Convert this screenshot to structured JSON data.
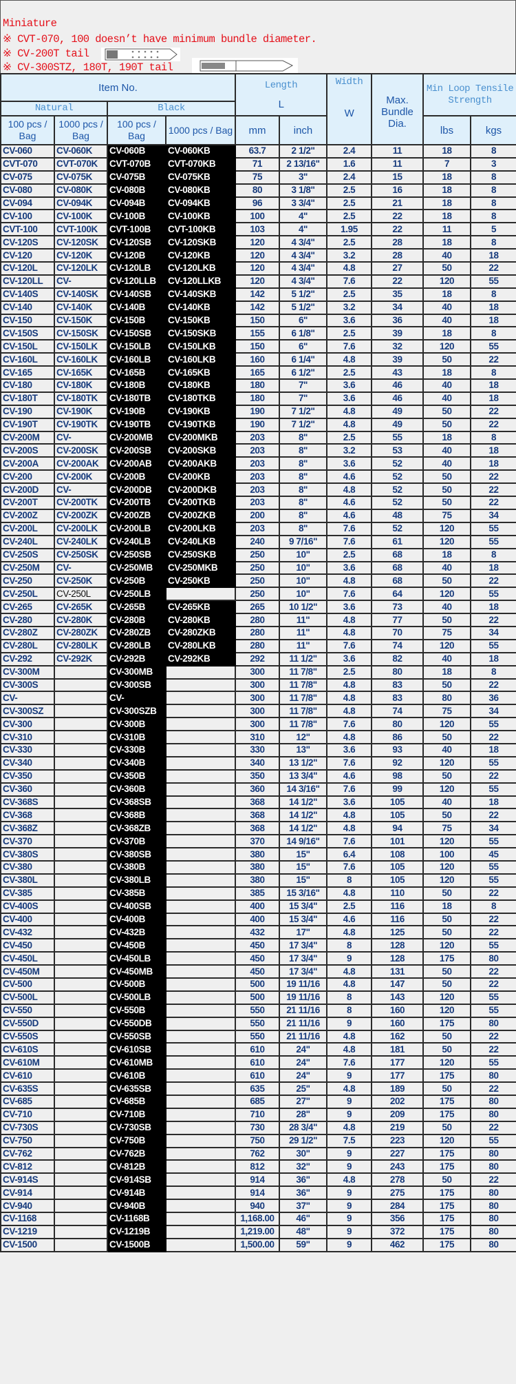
{
  "notes": {
    "title": "Miniature",
    "line1": "※ CVT-070, 100 doesn’t have minimum bundle diameter.",
    "line2": "※ CV-200T tail",
    "line3": "※ CV-300STZ, 180T, 190T tail"
  },
  "header": {
    "item_no": "Item No.",
    "length": "Length",
    "length_symbol": "L",
    "width": "Width",
    "width_symbol": "W",
    "max_bundle": "Max. Bundle Dia.",
    "tensile": "Min Loop Tensile Strength",
    "natural": "Natural",
    "black": "Black",
    "n100": "100 pcs / Bag",
    "n1000": "1000 pcs / Bag",
    "b100": "100 pcs / Bag",
    "b1000": "1000 pcs / Bag",
    "mm": "mm",
    "inch": "inch",
    "lbs": "lbs",
    "kgs": "kgs"
  },
  "colors": {
    "note_red": "#e4101a",
    "text_blue": "#163a7c",
    "header_bg": "#dff0fb",
    "black_col": "#000000"
  },
  "rows": [
    [
      "CV-060",
      "CV-060K",
      "CV-060B",
      "CV-060KB",
      "63.7",
      "2 1/2\"",
      "2.4",
      "11",
      "18",
      "8"
    ],
    [
      "CVT-070",
      "CVT-070K",
      "CVT-070B",
      "CVT-070KB",
      "71",
      "2 13/16\"",
      "1.6",
      "11",
      "7",
      "3"
    ],
    [
      "CV-075",
      "CV-075K",
      "CV-075B",
      "CV-075KB",
      "75",
      "3\"",
      "2.4",
      "15",
      "18",
      "8"
    ],
    [
      "CV-080",
      "CV-080K",
      "CV-080B",
      "CV-080KB",
      "80",
      "3 1/8\"",
      "2.5",
      "16",
      "18",
      "8"
    ],
    [
      "CV-094",
      "CV-094K",
      "CV-094B",
      "CV-094KB",
      "96",
      "3 3/4\"",
      "2.5",
      "21",
      "18",
      "8"
    ],
    [
      "CV-100",
      "CV-100K",
      "CV-100B",
      "CV-100KB",
      "100",
      "4\"",
      "2.5",
      "22",
      "18",
      "8"
    ],
    [
      "CVT-100",
      "CVT-100K",
      "CVT-100B",
      "CVT-100KB",
      "103",
      "4\"",
      "1.95",
      "22",
      "11",
      "5"
    ],
    [
      "CV-120S",
      "CV-120SK",
      "CV-120SB",
      "CV-120SKB",
      "120",
      "4 3/4\"",
      "2.5",
      "28",
      "18",
      "8"
    ],
    [
      "CV-120",
      "CV-120K",
      "CV-120B",
      "CV-120KB",
      "120",
      "4 3/4\"",
      "3.2",
      "28",
      "40",
      "18"
    ],
    [
      "CV-120L",
      "CV-120LK",
      "CV-120LB",
      "CV-120LKB",
      "120",
      "4 3/4\"",
      "4.8",
      "27",
      "50",
      "22"
    ],
    [
      "CV-120LL",
      "CV-",
      "CV-120LLB",
      "CV-120LLKB",
      "120",
      "4 3/4\"",
      "7.6",
      "22",
      "120",
      "55"
    ],
    [
      "CV-140S",
      "CV-140SK",
      "CV-140SB",
      "CV-140SKB",
      "142",
      "5 1/2\"",
      "2.5",
      "35",
      "18",
      "8"
    ],
    [
      "CV-140",
      "CV-140K",
      "CV-140B",
      "CV-140KB",
      "142",
      "5 1/2\"",
      "3.2",
      "34",
      "40",
      "18"
    ],
    [
      "CV-150",
      "CV-150K",
      "CV-150B",
      "CV-150KB",
      "150",
      "6\"",
      "3.6",
      "36",
      "40",
      "18"
    ],
    [
      "CV-150S",
      "CV-150SK",
      "CV-150SB",
      "CV-150SKB",
      "155",
      "6 1/8\"",
      "2.5",
      "39",
      "18",
      "8"
    ],
    [
      "CV-150L",
      "CV-150LK",
      "CV-150LB",
      "CV-150LKB",
      "150",
      "6\"",
      "7.6",
      "32",
      "120",
      "55"
    ],
    [
      "CV-160L",
      "CV-160LK",
      "CV-160LB",
      "CV-160LKB",
      "160",
      "6 1/4\"",
      "4.8",
      "39",
      "50",
      "22"
    ],
    [
      "CV-165",
      "CV-165K",
      "CV-165B",
      "CV-165KB",
      "165",
      "6 1/2\"",
      "2.5",
      "43",
      "18",
      "8"
    ],
    [
      "CV-180",
      "CV-180K",
      "CV-180B",
      "CV-180KB",
      "180",
      "7\"",
      "3.6",
      "46",
      "40",
      "18"
    ],
    [
      "CV-180T",
      "CV-180TK",
      "CV-180TB",
      "CV-180TKB",
      "180",
      "7\"",
      "3.6",
      "46",
      "40",
      "18"
    ],
    [
      "CV-190",
      "CV-190K",
      "CV-190B",
      "CV-190KB",
      "190",
      "7 1/2\"",
      "4.8",
      "49",
      "50",
      "22"
    ],
    [
      "CV-190T",
      "CV-190TK",
      "CV-190TB",
      "CV-190TKB",
      "190",
      "7 1/2\"",
      "4.8",
      "49",
      "50",
      "22"
    ],
    [
      "CV-200M",
      "CV-",
      "CV-200MB",
      "CV-200MKB",
      "203",
      "8\"",
      "2.5",
      "55",
      "18",
      "8"
    ],
    [
      "CV-200S",
      "CV-200SK",
      "CV-200SB",
      "CV-200SKB",
      "203",
      "8\"",
      "3.2",
      "53",
      "40",
      "18"
    ],
    [
      "CV-200A",
      "CV-200AK",
      "CV-200AB",
      "CV-200AKB",
      "203",
      "8\"",
      "3.6",
      "52",
      "40",
      "18"
    ],
    [
      "CV-200",
      "CV-200K",
      "CV-200B",
      "CV-200KB",
      "203",
      "8\"",
      "4.6",
      "52",
      "50",
      "22"
    ],
    [
      "CV-200D",
      "CV-",
      "CV-200DB",
      "CV-200DKB",
      "203",
      "8\"",
      "4.8",
      "52",
      "50",
      "22"
    ],
    [
      "CV-200T",
      "CV-200TK",
      "CV-200TB",
      "CV-200TKB",
      "203",
      "8\"",
      "4.6",
      "52",
      "50",
      "22"
    ],
    [
      "CV-200Z",
      "CV-200ZK",
      "CV-200ZB",
      "CV-200ZKB",
      "200",
      "8\"",
      "4.6",
      "48",
      "75",
      "34"
    ],
    [
      "CV-200L",
      "CV-200LK",
      "CV-200LB",
      "CV-200LKB",
      "203",
      "8\"",
      "7.6",
      "52",
      "120",
      "55"
    ],
    [
      "CV-240L",
      "CV-240LK",
      "CV-240LB",
      "CV-240LKB",
      "240",
      "9 7/16\"",
      "7.6",
      "61",
      "120",
      "55"
    ],
    [
      "CV-250S",
      "CV-250SK",
      "CV-250SB",
      "CV-250SKB",
      "250",
      "10\"",
      "2.5",
      "68",
      "18",
      "8"
    ],
    [
      "CV-250M",
      "CV-",
      "CV-250MB",
      "CV-250MKB",
      "250",
      "10\"",
      "3.6",
      "68",
      "40",
      "18"
    ],
    [
      "CV-250",
      "CV-250K",
      "CV-250B",
      "CV-250KB",
      "250",
      "10\"",
      "4.8",
      "68",
      "50",
      "22"
    ],
    [
      "CV-250L",
      "CV-250L",
      "CV-250LB",
      "",
      "250",
      "10\"",
      "7.6",
      "64",
      "120",
      "55"
    ],
    [
      "CV-265",
      "CV-265K",
      "CV-265B",
      "CV-265KB",
      "265",
      "10 1/2\"",
      "3.6",
      "73",
      "40",
      "18"
    ],
    [
      "CV-280",
      "CV-280K",
      "CV-280B",
      "CV-280KB",
      "280",
      "11\"",
      "4.8",
      "77",
      "50",
      "22"
    ],
    [
      "CV-280Z",
      "CV-280ZK",
      "CV-280ZB",
      "CV-280ZKB",
      "280",
      "11\"",
      "4.8",
      "70",
      "75",
      "34"
    ],
    [
      "CV-280L",
      "CV-280LK",
      "CV-280LB",
      "CV-280LKB",
      "280",
      "11\"",
      "7.6",
      "74",
      "120",
      "55"
    ],
    [
      "CV-292",
      "CV-292K",
      "CV-292B",
      "CV-292KB",
      "292",
      "11 1/2\"",
      "3.6",
      "82",
      "40",
      "18"
    ],
    [
      "CV-300M",
      "",
      "CV-300MB",
      "",
      "300",
      "11 7/8\"",
      "2.5",
      "80",
      "18",
      "8"
    ],
    [
      "CV-300S",
      "",
      "CV-300SB",
      "",
      "300",
      "11 7/8\"",
      "4.8",
      "83",
      "50",
      "22"
    ],
    [
      "CV-",
      "",
      "CV-",
      "",
      "300",
      "11 7/8\"",
      "4.8",
      "83",
      "80",
      "36"
    ],
    [
      "CV-300SZ",
      "",
      "CV-300SZB",
      "",
      "300",
      "11 7/8\"",
      "4.8",
      "74",
      "75",
      "34"
    ],
    [
      "CV-300",
      "",
      "CV-300B",
      "",
      "300",
      "11 7/8\"",
      "7.6",
      "80",
      "120",
      "55"
    ],
    [
      "CV-310",
      "",
      "CV-310B",
      "",
      "310",
      "12\"",
      "4.8",
      "86",
      "50",
      "22"
    ],
    [
      "CV-330",
      "",
      "CV-330B",
      "",
      "330",
      "13\"",
      "3.6",
      "93",
      "40",
      "18"
    ],
    [
      "CV-340",
      "",
      "CV-340B",
      "",
      "340",
      "13 1/2\"",
      "7.6",
      "92",
      "120",
      "55"
    ],
    [
      "CV-350",
      "",
      "CV-350B",
      "",
      "350",
      "13 3/4\"",
      "4.6",
      "98",
      "50",
      "22"
    ],
    [
      "CV-360",
      "",
      "CV-360B",
      "",
      "360",
      "14 3/16\"",
      "7.6",
      "99",
      "120",
      "55"
    ],
    [
      "CV-368S",
      "",
      "CV-368SB",
      "",
      "368",
      "14 1/2\"",
      "3.6",
      "105",
      "40",
      "18"
    ],
    [
      "CV-368",
      "",
      "CV-368B",
      "",
      "368",
      "14 1/2\"",
      "4.8",
      "105",
      "50",
      "22"
    ],
    [
      "CV-368Z",
      "",
      "CV-368ZB",
      "",
      "368",
      "14 1/2\"",
      "4.8",
      "94",
      "75",
      "34"
    ],
    [
      "CV-370",
      "",
      "CV-370B",
      "",
      "370",
      "14 9/16\"",
      "7.6",
      "101",
      "120",
      "55"
    ],
    [
      "CV-380S",
      "",
      "CV-380SB",
      "",
      "380",
      "15\"",
      "6.4",
      "108",
      "100",
      "45"
    ],
    [
      "CV-380",
      "",
      "CV-380B",
      "",
      "380",
      "15\"",
      "7.6",
      "105",
      "120",
      "55"
    ],
    [
      "CV-380L",
      "",
      "CV-380LB",
      "",
      "380",
      "15\"",
      "8",
      "105",
      "120",
      "55"
    ],
    [
      "CV-385",
      "",
      "CV-385B",
      "",
      "385",
      "15 3/16\"",
      "4.8",
      "110",
      "50",
      "22"
    ],
    [
      "CV-400S",
      "",
      "CV-400SB",
      "",
      "400",
      "15 3/4\"",
      "2.5",
      "116",
      "18",
      "8"
    ],
    [
      "CV-400",
      "",
      "CV-400B",
      "",
      "400",
      "15 3/4\"",
      "4.6",
      "116",
      "50",
      "22"
    ],
    [
      "CV-432",
      "",
      "CV-432B",
      "",
      "432",
      "17\"",
      "4.8",
      "125",
      "50",
      "22"
    ],
    [
      "CV-450",
      "",
      "CV-450B",
      "",
      "450",
      "17 3/4\"",
      "8",
      "128",
      "120",
      "55"
    ],
    [
      "CV-450L",
      "",
      "CV-450LB",
      "",
      "450",
      "17 3/4\"",
      "9",
      "128",
      "175",
      "80"
    ],
    [
      "CV-450M",
      "",
      "CV-450MB",
      "",
      "450",
      "17 3/4\"",
      "4.8",
      "131",
      "50",
      "22"
    ],
    [
      "CV-500",
      "",
      "CV-500B",
      "",
      "500",
      "19 11/16",
      "4.8",
      "147",
      "50",
      "22"
    ],
    [
      "CV-500L",
      "",
      "CV-500LB",
      "",
      "500",
      "19 11/16",
      "8",
      "143",
      "120",
      "55"
    ],
    [
      "CV-550",
      "",
      "CV-550B",
      "",
      "550",
      "21 11/16",
      "8",
      "160",
      "120",
      "55"
    ],
    [
      "CV-550D",
      "",
      "CV-550DB",
      "",
      "550",
      "21 11/16",
      "9",
      "160",
      "175",
      "80"
    ],
    [
      "CV-550S",
      "",
      "CV-550SB",
      "",
      "550",
      "21 11/16",
      "4.8",
      "162",
      "50",
      "22"
    ],
    [
      "CV-610S",
      "",
      "CV-610SB",
      "",
      "610",
      "24\"",
      "4.8",
      "181",
      "50",
      "22"
    ],
    [
      "CV-610M",
      "",
      "CV-610MB",
      "",
      "610",
      "24\"",
      "7.6",
      "177",
      "120",
      "55"
    ],
    [
      "CV-610",
      "",
      "CV-610B",
      "",
      "610",
      "24\"",
      "9",
      "177",
      "175",
      "80"
    ],
    [
      "CV-635S",
      "",
      "CV-635SB",
      "",
      "635",
      "25\"",
      "4.8",
      "189",
      "50",
      "22"
    ],
    [
      "CV-685",
      "",
      "CV-685B",
      "",
      "685",
      "27\"",
      "9",
      "202",
      "175",
      "80"
    ],
    [
      "CV-710",
      "",
      "CV-710B",
      "",
      "710",
      "28\"",
      "9",
      "209",
      "175",
      "80"
    ],
    [
      "CV-730S",
      "",
      "CV-730SB",
      "",
      "730",
      "28 3/4\"",
      "4.8",
      "219",
      "50",
      "22"
    ],
    [
      "CV-750",
      "",
      "CV-750B",
      "",
      "750",
      "29 1/2\"",
      "7.5",
      "223",
      "120",
      "55"
    ],
    [
      "CV-762",
      "",
      "CV-762B",
      "",
      "762",
      "30\"",
      "9",
      "227",
      "175",
      "80"
    ],
    [
      "CV-812",
      "",
      "CV-812B",
      "",
      "812",
      "32\"",
      "9",
      "243",
      "175",
      "80"
    ],
    [
      "CV-914S",
      "",
      "CV-914SB",
      "",
      "914",
      "36\"",
      "4.8",
      "278",
      "50",
      "22"
    ],
    [
      "CV-914",
      "",
      "CV-914B",
      "",
      "914",
      "36\"",
      "9",
      "275",
      "175",
      "80"
    ],
    [
      "CV-940",
      "",
      "CV-940B",
      "",
      "940",
      "37\"",
      "9",
      "284",
      "175",
      "80"
    ],
    [
      "CV-1168",
      "",
      "CV-1168B",
      "",
      "1,168.00",
      "46\"",
      "9",
      "356",
      "175",
      "80"
    ],
    [
      "CV-1219",
      "",
      "CV-1219B",
      "",
      "1,219.00",
      "48\"",
      "9",
      "372",
      "175",
      "80"
    ],
    [
      "CV-1500",
      "",
      "CV-1500B",
      "",
      "1,500.00",
      "59\"",
      "9",
      "462",
      "175",
      "80"
    ]
  ]
}
